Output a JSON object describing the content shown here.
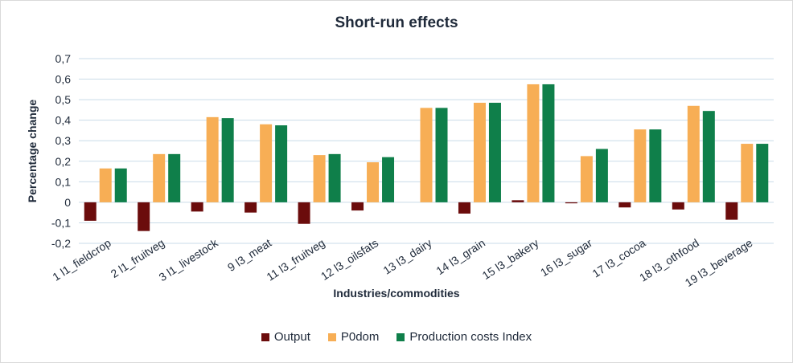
{
  "chart_data": {
    "type": "bar",
    "title": "Short-run effects",
    "xlabel": "Industries/commodities",
    "ylabel": "Percentage change",
    "ylim": [
      -0.2,
      0.7
    ],
    "yticks": [
      "-0,2",
      "-0,1",
      "0",
      "0,1",
      "0,2",
      "0,3",
      "0,4",
      "0,5",
      "0,6",
      "0,7"
    ],
    "grid": true,
    "legend_position": "bottom",
    "categories": [
      "1 l1_fieldcrop",
      "2 l1_fruitveg",
      "3 l1_livestock",
      "9 l3_meat",
      "11 l3_fruitveg",
      "12 l3_oilsfats",
      "13 l3_dairy",
      "14 l3_grain",
      "15 l3_bakery",
      "16 l3_sugar",
      "17 l3_cocoa",
      "18 l3_othfood",
      "19 l3_beverage"
    ],
    "series": [
      {
        "name": "Output",
        "color": "#6b0c0c",
        "values": [
          -0.09,
          -0.14,
          -0.045,
          -0.05,
          -0.105,
          -0.04,
          0.0,
          -0.055,
          0.01,
          -0.005,
          -0.025,
          -0.035,
          -0.085
        ]
      },
      {
        "name": "P0dom",
        "color": "#f7ae55",
        "values": [
          0.165,
          0.235,
          0.415,
          0.38,
          0.23,
          0.195,
          0.46,
          0.485,
          0.575,
          0.225,
          0.355,
          0.47,
          0.285
        ]
      },
      {
        "name": "Production costs Index",
        "color": "#0f7f4a",
        "values": [
          0.165,
          0.235,
          0.41,
          0.375,
          0.235,
          0.22,
          0.46,
          0.485,
          0.575,
          0.26,
          0.355,
          0.445,
          0.285
        ]
      }
    ]
  }
}
